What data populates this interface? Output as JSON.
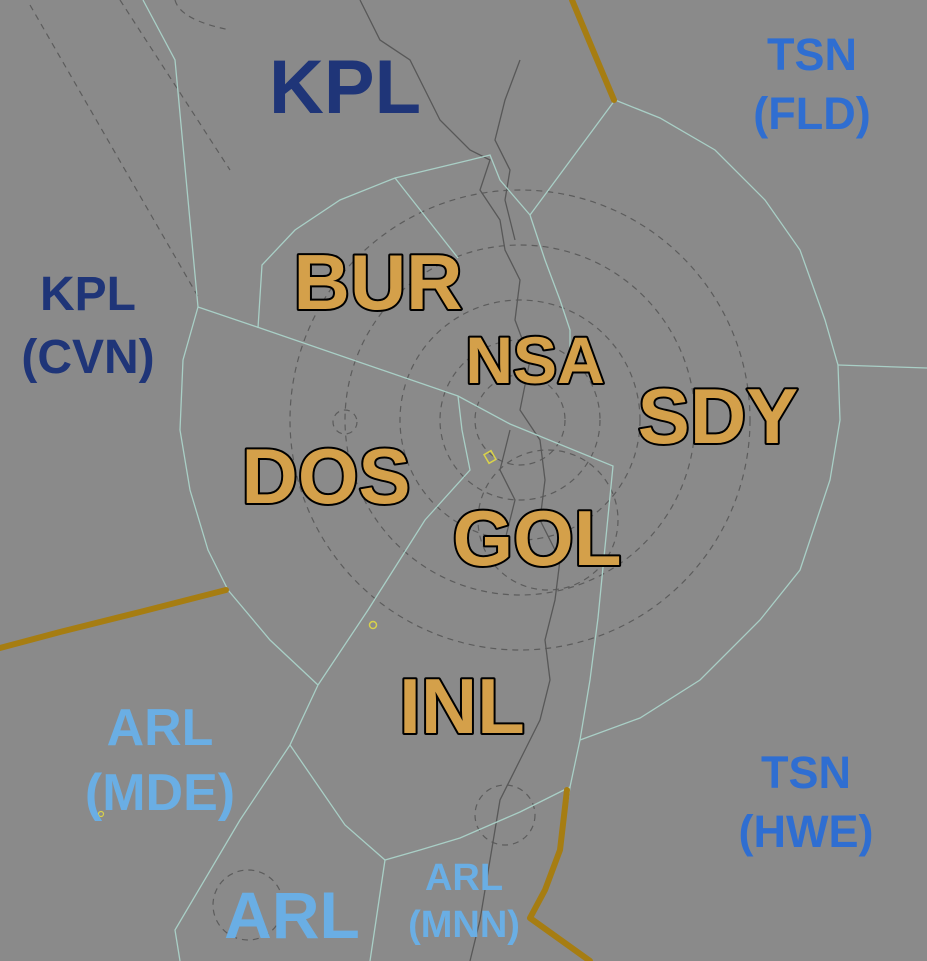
{
  "sectors": {
    "bur": "BUR",
    "nsa": "NSA",
    "sdy": "SDY",
    "dos": "DOS",
    "gol": "GOL",
    "inl": "INL"
  },
  "neighbors": {
    "kpl": "KPL",
    "kpl_cvn_1": "KPL",
    "kpl_cvn_2": "(CVN)",
    "tsn_fld_1": "TSN",
    "tsn_fld_2": "(FLD)",
    "tsn_hwe_1": "TSN",
    "tsn_hwe_2": "(HWE)",
    "arl_mde_1": "ARL",
    "arl_mde_2": "(MDE)",
    "arl": "ARL",
    "arl_mnn_1": "ARL",
    "arl_mnn_2": "(MNN)"
  },
  "colors": {
    "background": "#8a8a8a",
    "sector_fill": "#d4a04a",
    "kpl": "#1f3578",
    "tsn": "#2f6ed1",
    "arl": "#6aaee4",
    "fir_boundary": "#a67d12",
    "sector_boundary": "#a9cfc6"
  }
}
